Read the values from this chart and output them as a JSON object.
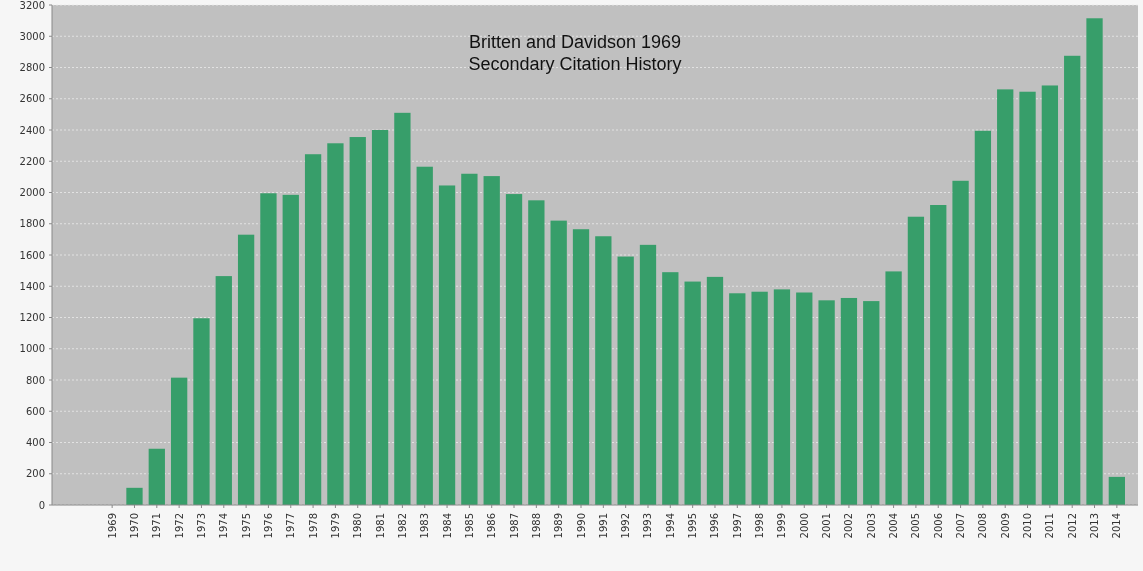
{
  "chart_data": {
    "type": "bar",
    "title": "Britten and Davidson 1969\nSecondary Citation History",
    "categories": [
      "1969",
      "1970",
      "1971",
      "1972",
      "1973",
      "1974",
      "1975",
      "1976",
      "1977",
      "1978",
      "1979",
      "1980",
      "1981",
      "1982",
      "1983",
      "1984",
      "1985",
      "1986",
      "1987",
      "1988",
      "1989",
      "1990",
      "1991",
      "1992",
      "1993",
      "1994",
      "1995",
      "1996",
      "1997",
      "1998",
      "1999",
      "2000",
      "2001",
      "2002",
      "2003",
      "2004",
      "2005",
      "2006",
      "2007",
      "2008",
      "2009",
      "2010",
      "2011",
      "2012",
      "2013",
      "2014"
    ],
    "values": [
      0,
      110,
      360,
      815,
      1195,
      1465,
      1730,
      1995,
      1985,
      2245,
      2315,
      2355,
      2400,
      2510,
      2165,
      2045,
      2120,
      2105,
      1990,
      1950,
      1820,
      1765,
      1720,
      1590,
      1665,
      1490,
      1430,
      1460,
      1355,
      1365,
      1380,
      1360,
      1310,
      1325,
      1305,
      1495,
      1845,
      1920,
      2075,
      2395,
      2660,
      2645,
      2685,
      2875,
      3115,
      180
    ],
    "color": "#379e6a",
    "ylim": [
      0,
      3200
    ],
    "yticks": [
      0,
      200,
      400,
      600,
      800,
      1000,
      1200,
      1400,
      1600,
      1800,
      2000,
      2200,
      2400,
      2600,
      2800,
      3000,
      3200
    ],
    "grid": "y"
  }
}
